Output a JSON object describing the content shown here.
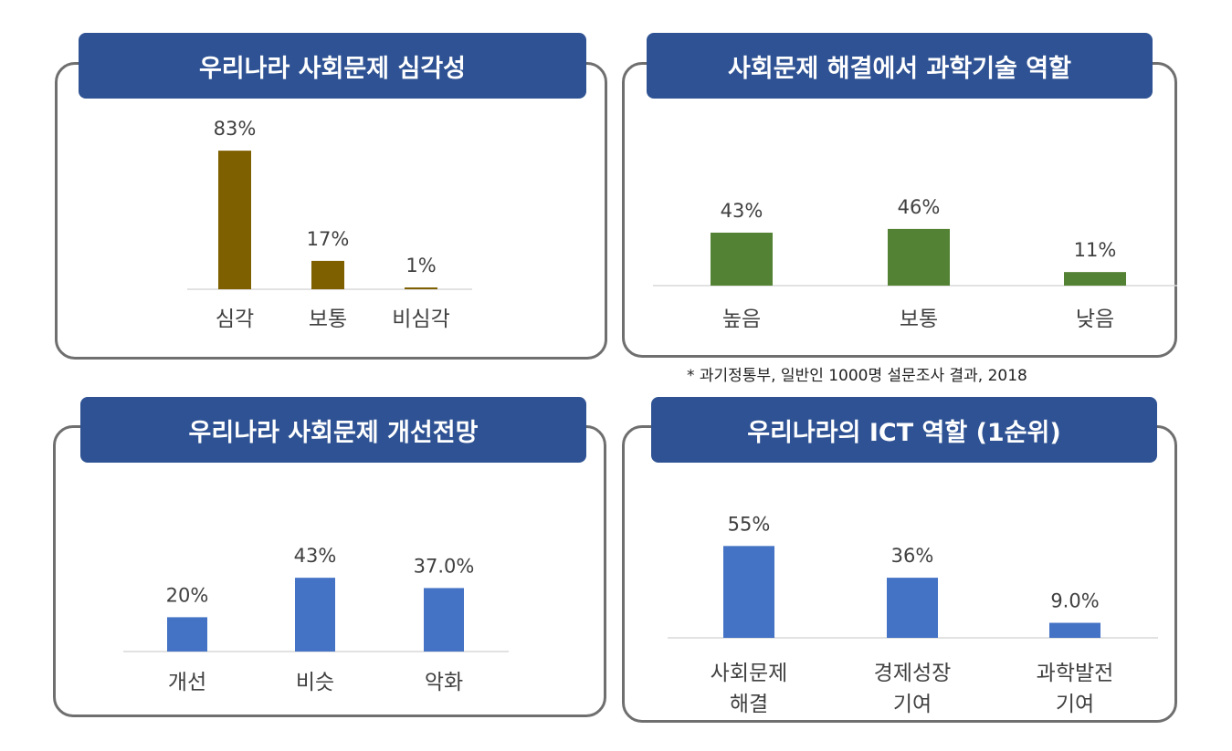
{
  "chart_data": [
    {
      "type": "bar",
      "title": "우리나라 사회문제 심각성",
      "categories": [
        [
          "심각"
        ],
        [
          "보통"
        ],
        [
          "비심각"
        ]
      ],
      "values": [
        83,
        17,
        1
      ],
      "value_labels": [
        "83%",
        "17%",
        "1%"
      ],
      "ylim": [
        0,
        100
      ],
      "bar_color": "#7f6000",
      "grid": false
    },
    {
      "type": "bar",
      "title": "사회문제 해결에서 과학기술 역할",
      "categories": [
        [
          "높음"
        ],
        [
          "보통"
        ],
        [
          "낮음"
        ]
      ],
      "values": [
        43,
        46,
        11
      ],
      "value_labels": [
        "43%",
        "46%",
        "11%"
      ],
      "ylim": [
        0,
        100
      ],
      "bar_color": "#548235",
      "grid": false
    },
    {
      "type": "bar",
      "title": "우리나라 사회문제 개선전망",
      "categories": [
        [
          "개선"
        ],
        [
          "비슷"
        ],
        [
          "악화"
        ]
      ],
      "values": [
        20,
        43,
        37.0
      ],
      "value_labels": [
        "20%",
        "43%",
        "37.0%"
      ],
      "ylim": [
        0,
        100
      ],
      "bar_color": "#4472c4",
      "grid": false
    },
    {
      "type": "bar",
      "title": "우리나라의 ICT 역할 (1순위)",
      "categories": [
        [
          "사회문제",
          "해결"
        ],
        [
          "경제성장",
          "기여"
        ],
        [
          "과학발전",
          "기여"
        ]
      ],
      "values": [
        55,
        36,
        9.0
      ],
      "value_labels": [
        "55%",
        "36%",
        "9.0%"
      ],
      "ylim": [
        0,
        100
      ],
      "bar_color": "#4472c4",
      "grid": false
    }
  ],
  "source_note": "* 과기정통부, 일반인 1000명 설문조사 결과, 2018",
  "colors": {
    "title_bg": "#2e5293",
    "panel_border": "#6f6f6f",
    "axis": "#d9d9d9",
    "text": "#404040"
  }
}
